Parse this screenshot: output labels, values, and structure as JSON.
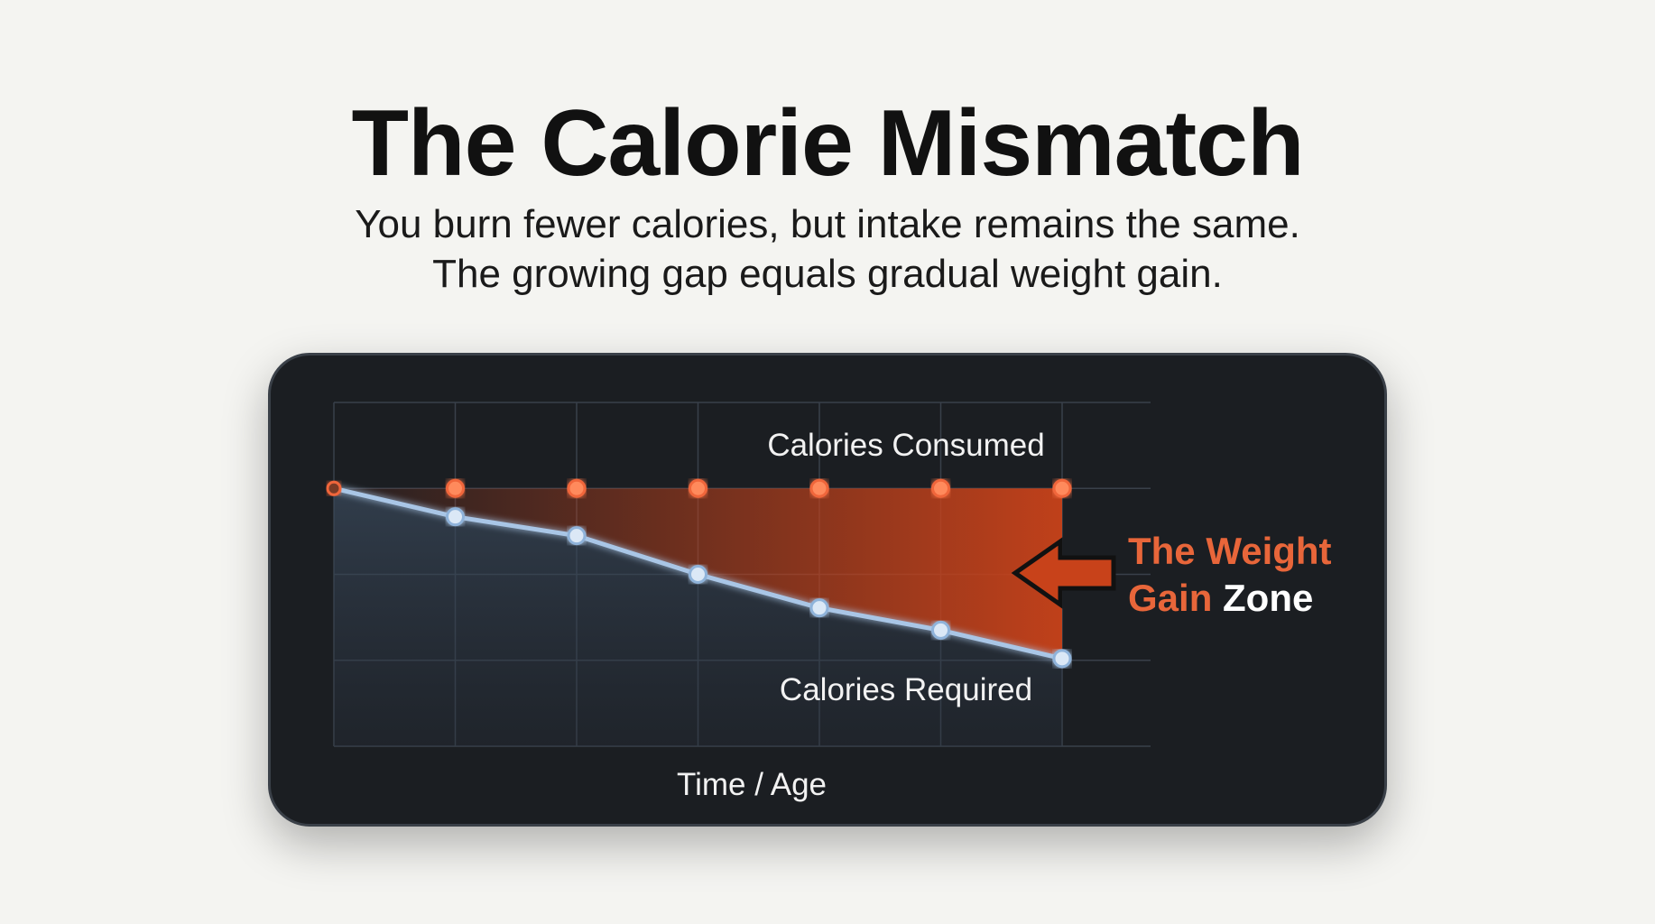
{
  "title": "The Calorie Mismatch",
  "subtitle_lines": [
    "You burn fewer calories, but intake remains the same.",
    "The growing gap equals gradual weight gain."
  ],
  "chart_data": {
    "type": "line",
    "x": [
      0,
      1,
      2,
      3,
      4,
      5,
      6
    ],
    "xlabel": "Time / Age",
    "ylim": [
      0,
      4
    ],
    "grid": true,
    "series": [
      {
        "name": "Calories Consumed",
        "values": [
          3,
          3,
          3,
          3,
          3,
          3,
          3
        ],
        "color": "#f0663a"
      },
      {
        "name": "Calories Required",
        "values": [
          3,
          2.67,
          2.45,
          2.0,
          1.61,
          1.35,
          1.02
        ],
        "color": "#a9c6e6"
      }
    ],
    "annotation": {
      "line1_orange": "The Weight",
      "line2_orange": "Gain",
      "line2_white": "Zone",
      "fill_color": "#c8421a"
    }
  }
}
